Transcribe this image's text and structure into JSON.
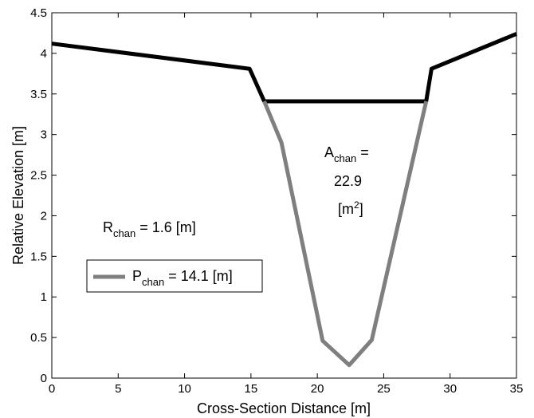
{
  "chart_data": {
    "type": "line",
    "xlabel": "Cross-Section Distance [m]",
    "ylabel": "Relative Elevation [m]",
    "xlim": [
      0,
      35
    ],
    "ylim": [
      0,
      4.5
    ],
    "x_ticks": [
      0,
      5,
      10,
      15,
      20,
      25,
      30,
      35
    ],
    "y_ticks": [
      0,
      0.5,
      1,
      1.5,
      2,
      2.5,
      3,
      3.5,
      4,
      4.5
    ],
    "x_tick_labels": [
      "0",
      "5",
      "10",
      "15",
      "20",
      "25",
      "30",
      "35"
    ],
    "y_tick_labels": [
      "0",
      "0.5",
      "1",
      "1.5",
      "2",
      "2.5",
      "3",
      "3.5",
      "4",
      "4.5"
    ],
    "grid": false,
    "series": [
      {
        "name": "",
        "color": "#000000",
        "x": [
          0,
          14.9,
          16.0,
          28.2,
          28.6,
          35
        ],
        "y": [
          4.12,
          3.81,
          3.41,
          3.41,
          3.81,
          4.24
        ]
      },
      {
        "name": "P_chan",
        "color": "#7f7f7f",
        "x": [
          16.0,
          17.3,
          20.4,
          22.4,
          24.1,
          28.2
        ],
        "y": [
          3.41,
          2.9,
          0.46,
          0.16,
          0.47,
          3.41
        ]
      }
    ],
    "annotations": {
      "a_chan": {
        "prefix": "A",
        "sub": "chan",
        "eq": " =",
        "value": "22.9",
        "unit_open": "[m",
        "unit_sup": "2",
        "unit_close": "]"
      },
      "r_chan": {
        "prefix": "R",
        "sub": "chan",
        "rest": " = 1.6 [m]"
      }
    },
    "legend": {
      "position": "left",
      "entry": {
        "prefix": "P",
        "sub": "chan",
        "rest": " = 14.1 [m]",
        "color": "#7f7f7f"
      }
    }
  }
}
